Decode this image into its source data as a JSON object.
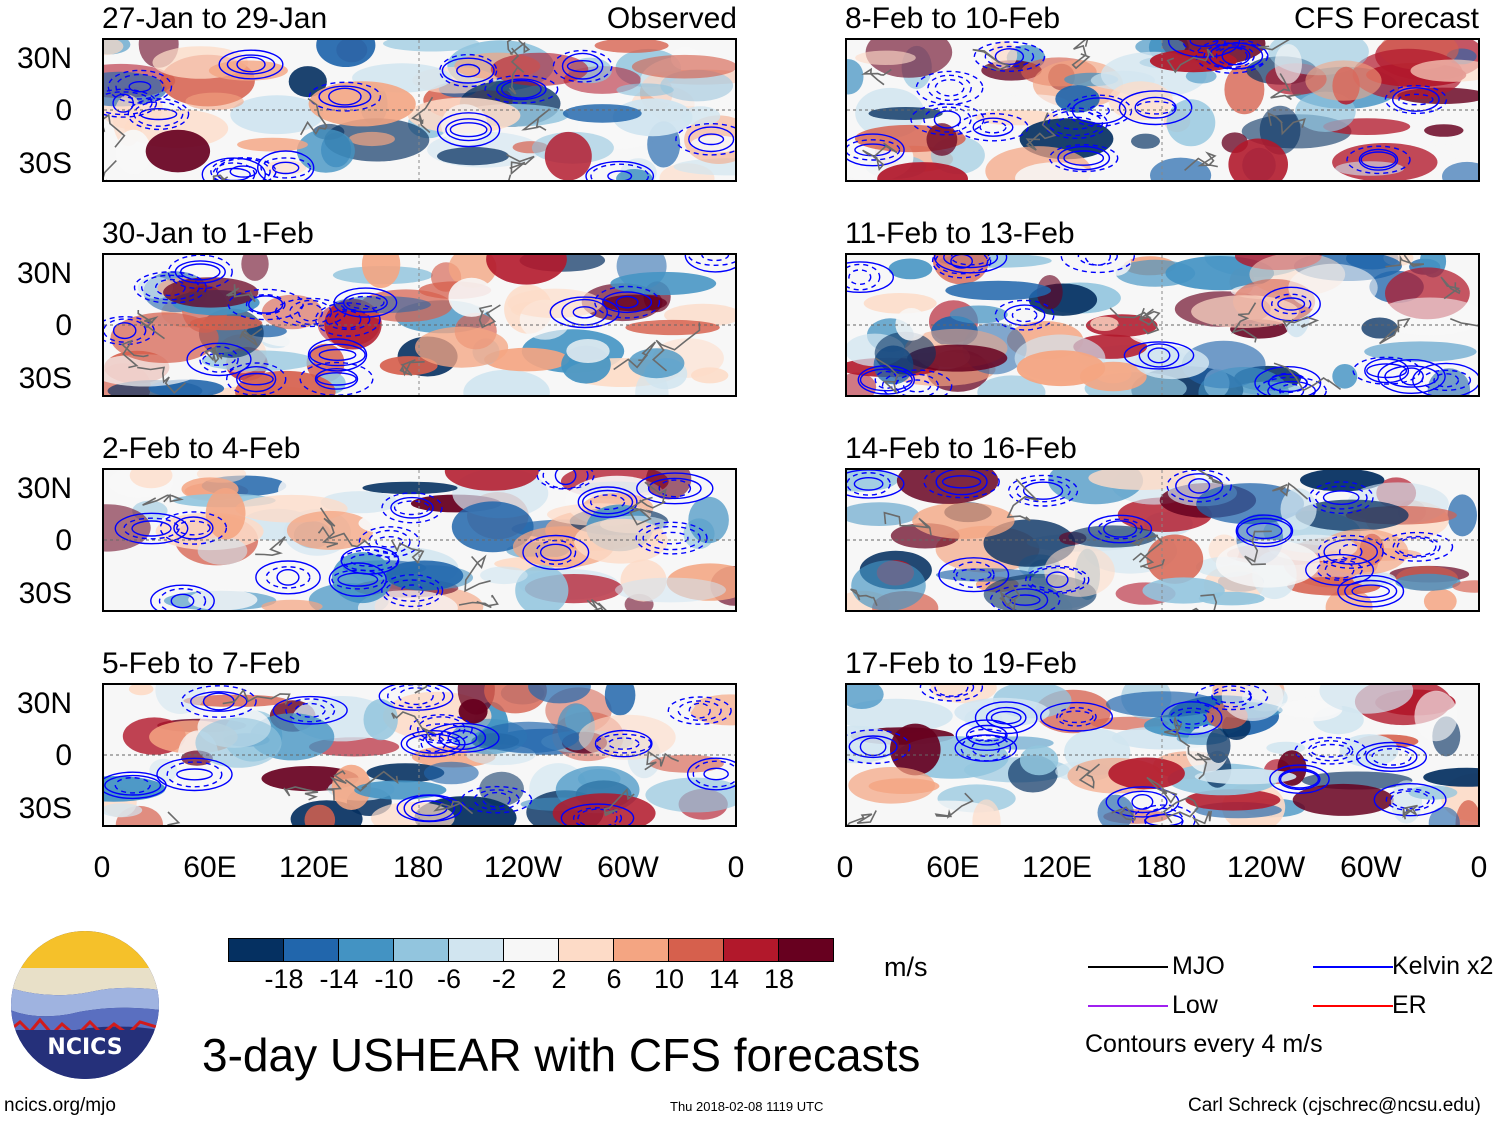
{
  "panels": [
    {
      "title": "27-Jan to 29-Jan",
      "tag": "Observed"
    },
    {
      "title": "30-Jan to 1-Feb",
      "tag": ""
    },
    {
      "title": "2-Feb to 4-Feb",
      "tag": ""
    },
    {
      "title": "5-Feb to 7-Feb",
      "tag": ""
    },
    {
      "title": "8-Feb to 10-Feb",
      "tag": "CFS Forecast"
    },
    {
      "title": "11-Feb to 13-Feb",
      "tag": ""
    },
    {
      "title": "14-Feb to 16-Feb",
      "tag": ""
    },
    {
      "title": "17-Feb to 19-Feb",
      "tag": ""
    }
  ],
  "axes": {
    "lat_labels": [
      "30N",
      "0",
      "30S"
    ],
    "lon_labels": [
      "0",
      "60E",
      "120E",
      "180",
      "120W",
      "60W",
      "0"
    ]
  },
  "colorbar": {
    "labels": [
      "-18",
      "-14",
      "-10",
      "-6",
      "-2",
      "2",
      "6",
      "10",
      "14",
      "18"
    ],
    "units": "m/s",
    "colors": [
      "#053061",
      "#2166ac",
      "#4393c3",
      "#92c5de",
      "#d1e5f0",
      "#f7f7f7",
      "#fddbc7",
      "#f4a582",
      "#d6604d",
      "#b2182b",
      "#67001f"
    ]
  },
  "legend": {
    "items": [
      {
        "label": "MJO",
        "color": "#000000"
      },
      {
        "label": "Kelvin x2",
        "color": "#0000ff"
      },
      {
        "label": "Low",
        "color": "#a020f0"
      },
      {
        "label": "ER",
        "color": "#ff0000"
      }
    ],
    "note": "Contours every 4 m/s"
  },
  "logo": {
    "text": "NCICS"
  },
  "title": "3-day USHEAR with CFS forecasts",
  "footer": {
    "left": "ncics.org/mjo",
    "center": "Thu 2018-02-08 1119 UTC",
    "right": "Carl Schreck (cjschrec@ncsu.edu)"
  }
}
